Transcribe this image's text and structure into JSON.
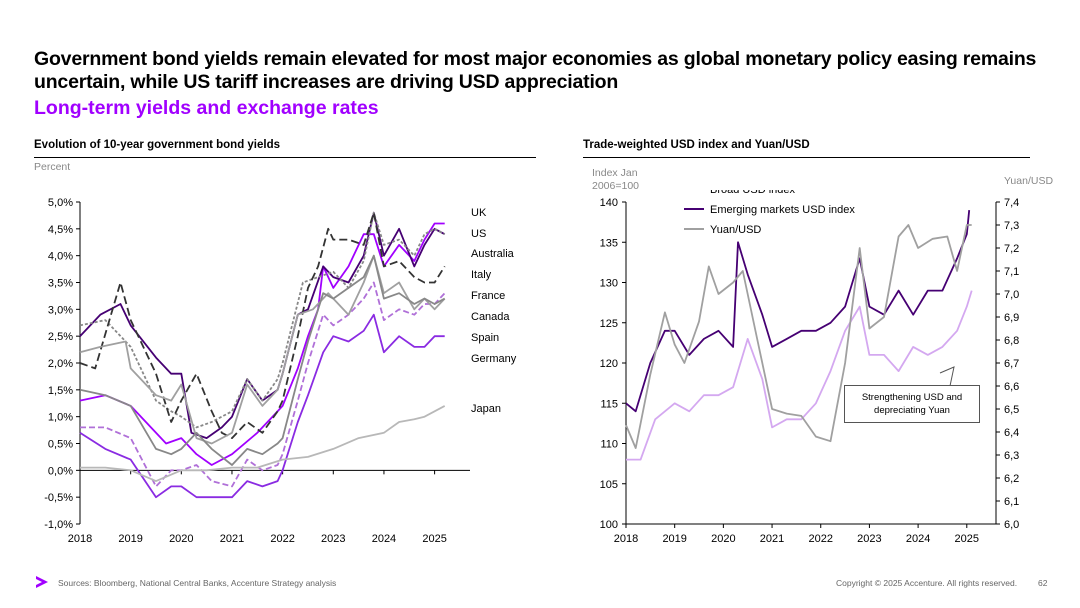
{
  "header": {
    "title": "Government bond yields remain elevated for most major economies as global monetary policy easing remains uncertain, while US tariff increases are driving USD appreciation",
    "subtitle": "Long-term yields and exchange rates"
  },
  "footer": {
    "sources": "Sources: Bloomberg, National Central Banks, Accenture Strategy analysis",
    "copyright": "Copyright © 2025 Accenture. All rights reserved.",
    "page": "62"
  },
  "colors": {
    "accent": "#a100ff",
    "dark_purple": "#460073",
    "light_purple": "#d4a8f0",
    "grey": "#a0a0a0"
  },
  "chart_data": [
    {
      "type": "line",
      "title": "Evolution of 10-year government bond yields",
      "ylabel": "Percent",
      "x_ticks": [
        "2018",
        "2019",
        "2020",
        "2021",
        "2022",
        "2023",
        "2024",
        "2025"
      ],
      "y_ticks": [
        "5,0%",
        "4,5%",
        "4,0%",
        "3,5%",
        "3,0%",
        "2,5%",
        "2,0%",
        "1,5%",
        "1,0%",
        "0,5%",
        "0,0%",
        "-0,5%",
        "-1,0%"
      ],
      "ylim": [
        -1.0,
        5.0
      ],
      "xlim": [
        2018.0,
        2025.6
      ],
      "legend": [
        "UK",
        "US",
        "Australia",
        "Italy",
        "France",
        "Canada",
        "Spain",
        "Germany",
        "Japan"
      ],
      "series": [
        {
          "name": "UK",
          "color": "#a100ff",
          "dash": "",
          "x": [
            2018,
            2018.5,
            2019,
            2019.5,
            2019.7,
            2020,
            2020.3,
            2020.6,
            2021,
            2021.5,
            2021.8,
            2022,
            2022.3,
            2022.5,
            2022.7,
            2022.8,
            2023,
            2023.3,
            2023.6,
            2023.8,
            2024,
            2024.3,
            2024.6,
            2024.8,
            2025,
            2025.2
          ],
          "values": [
            1.3,
            1.4,
            1.2,
            0.7,
            0.5,
            0.6,
            0.3,
            0.1,
            0.3,
            0.7,
            1.0,
            1.2,
            1.9,
            2.5,
            3.0,
            3.8,
            3.4,
            3.8,
            4.4,
            4.4,
            3.8,
            4.2,
            3.9,
            4.3,
            4.6,
            4.6
          ]
        },
        {
          "name": "US",
          "color": "#460073",
          "dash": "",
          "x": [
            2018,
            2018.4,
            2018.8,
            2019,
            2019.5,
            2019.8,
            2020,
            2020.2,
            2020.5,
            2020.8,
            2021,
            2021.3,
            2021.6,
            2021.9,
            2022,
            2022.3,
            2022.5,
            2022.8,
            2023,
            2023.3,
            2023.6,
            2023.8,
            2024,
            2024.3,
            2024.6,
            2024.8,
            2025,
            2025.2
          ],
          "values": [
            2.5,
            2.9,
            3.1,
            2.7,
            2.1,
            1.8,
            1.8,
            0.7,
            0.6,
            0.8,
            1.0,
            1.7,
            1.3,
            1.5,
            1.8,
            2.9,
            3.0,
            3.8,
            3.6,
            3.5,
            4.0,
            4.8,
            4.0,
            4.5,
            3.8,
            4.2,
            4.5,
            4.4
          ]
        },
        {
          "name": "Australia",
          "color": "#888888",
          "dash": "3,2",
          "x": [
            2018,
            2018.5,
            2019,
            2019.5,
            2019.8,
            2020,
            2020.3,
            2020.6,
            2021,
            2021.3,
            2021.6,
            2021.9,
            2022,
            2022.4,
            2022.7,
            2023,
            2023.3,
            2023.6,
            2023.8,
            2024,
            2024.3,
            2024.6,
            2024.8,
            2025,
            2025.2
          ],
          "values": [
            2.7,
            2.8,
            2.3,
            1.3,
            1.1,
            1.0,
            0.8,
            0.9,
            1.1,
            1.7,
            1.3,
            1.7,
            2.0,
            3.5,
            3.6,
            3.7,
            3.4,
            3.9,
            4.8,
            4.2,
            4.3,
            4.0,
            4.4,
            4.5,
            4.4
          ]
        },
        {
          "name": "Italy",
          "color": "#333333",
          "dash": "8,4",
          "x": [
            2018,
            2018.3,
            2018.8,
            2019,
            2019.5,
            2019.8,
            2020,
            2020.3,
            2020.6,
            2020.8,
            2021,
            2021.3,
            2021.6,
            2021.9,
            2022,
            2022.3,
            2022.5,
            2022.7,
            2022.9,
            2023,
            2023.3,
            2023.6,
            2023.8,
            2024,
            2024.3,
            2024.6,
            2024.8,
            2025,
            2025.2
          ],
          "values": [
            2.0,
            1.9,
            3.5,
            2.8,
            1.8,
            0.9,
            1.3,
            1.8,
            1.1,
            0.7,
            0.6,
            0.9,
            0.7,
            1.1,
            1.3,
            2.5,
            3.4,
            3.8,
            4.5,
            4.3,
            4.3,
            4.2,
            4.8,
            3.8,
            3.9,
            3.6,
            3.5,
            3.5,
            3.8
          ]
        },
        {
          "name": "France",
          "color": "#b070d8",
          "dash": "6,3",
          "x": [
            2018,
            2018.5,
            2019,
            2019.5,
            2019.8,
            2020,
            2020.3,
            2020.6,
            2021,
            2021.3,
            2021.6,
            2021.9,
            2022,
            2022.3,
            2022.5,
            2022.8,
            2023,
            2023.3,
            2023.6,
            2023.8,
            2024,
            2024.3,
            2024.6,
            2024.8,
            2025,
            2025.2
          ],
          "values": [
            0.8,
            0.8,
            0.6,
            -0.3,
            0.0,
            0.0,
            0.1,
            -0.2,
            -0.3,
            0.2,
            0.0,
            0.1,
            0.3,
            1.3,
            2.0,
            2.9,
            2.7,
            2.9,
            3.2,
            3.5,
            2.8,
            3.0,
            2.9,
            3.1,
            3.1,
            3.3
          ]
        },
        {
          "name": "Canada",
          "color": "#a0a0a0",
          "dash": "",
          "x": [
            2018,
            2018.4,
            2018.9,
            2019,
            2019.5,
            2019.8,
            2020,
            2020.3,
            2020.6,
            2021,
            2021.3,
            2021.6,
            2021.9,
            2022,
            2022.3,
            2022.6,
            2022.9,
            2023,
            2023.3,
            2023.6,
            2023.8,
            2024,
            2024.3,
            2024.6,
            2024.8,
            2025,
            2025.2
          ],
          "values": [
            2.2,
            2.3,
            2.4,
            1.9,
            1.4,
            1.3,
            1.6,
            0.6,
            0.5,
            0.7,
            1.6,
            1.2,
            1.5,
            1.8,
            2.9,
            3.0,
            3.3,
            3.2,
            2.9,
            3.5,
            4.0,
            3.3,
            3.5,
            3.0,
            3.2,
            3.0,
            3.2
          ]
        },
        {
          "name": "Spain",
          "color": "#888888",
          "dash": "",
          "x": [
            2018,
            2018.5,
            2019,
            2019.5,
            2019.8,
            2020,
            2020.3,
            2020.6,
            2021,
            2021.3,
            2021.6,
            2021.9,
            2022,
            2022.3,
            2022.5,
            2022.8,
            2023,
            2023.3,
            2023.6,
            2023.8,
            2024,
            2024.3,
            2024.6,
            2024.8,
            2025,
            2025.2
          ],
          "values": [
            1.5,
            1.4,
            1.2,
            0.4,
            0.3,
            0.4,
            0.7,
            0.4,
            0.1,
            0.4,
            0.3,
            0.5,
            0.6,
            1.7,
            2.4,
            3.3,
            3.2,
            3.4,
            3.6,
            4.0,
            3.2,
            3.3,
            3.1,
            3.2,
            3.1,
            3.2
          ]
        },
        {
          "name": "Germany",
          "color": "#8a2be2",
          "dash": "",
          "x": [
            2018,
            2018.5,
            2019,
            2019.5,
            2019.8,
            2020,
            2020.3,
            2020.6,
            2021,
            2021.3,
            2021.6,
            2021.9,
            2022,
            2022.3,
            2022.5,
            2022.8,
            2023,
            2023.3,
            2023.6,
            2023.8,
            2024,
            2024.3,
            2024.6,
            2024.8,
            2025,
            2025.2
          ],
          "values": [
            0.7,
            0.4,
            0.2,
            -0.5,
            -0.3,
            -0.3,
            -0.5,
            -0.5,
            -0.5,
            -0.2,
            -0.3,
            -0.2,
            0.0,
            0.9,
            1.4,
            2.2,
            2.5,
            2.4,
            2.6,
            2.9,
            2.2,
            2.5,
            2.3,
            2.3,
            2.5,
            2.5
          ]
        },
        {
          "name": "Japan",
          "color": "#b8b8b8",
          "dash": "",
          "x": [
            2018,
            2018.5,
            2019,
            2019.5,
            2020,
            2020.5,
            2021,
            2021.5,
            2022,
            2022.5,
            2023,
            2023.5,
            2024,
            2024.3,
            2024.6,
            2024.8,
            2025,
            2025.2
          ],
          "values": [
            0.05,
            0.05,
            0.0,
            -0.2,
            0.0,
            0.0,
            0.05,
            0.05,
            0.2,
            0.25,
            0.4,
            0.6,
            0.7,
            0.9,
            0.95,
            1.0,
            1.1,
            1.2
          ]
        }
      ]
    },
    {
      "type": "line",
      "title": "Trade-weighted USD index and Yuan/USD",
      "ylabel_left": "Index Jan 2006=100",
      "ylabel_right": "Yuan/USD",
      "x_ticks": [
        "2018",
        "2019",
        "2020",
        "2021",
        "2022",
        "2023",
        "2024",
        "2025"
      ],
      "y_ticks_left": [
        "140",
        "135",
        "130",
        "125",
        "120",
        "115",
        "110",
        "105",
        "100"
      ],
      "y_ticks_right": [
        "7,4",
        "7,3",
        "7,2",
        "7,1",
        "7,0",
        "6,9",
        "6,8",
        "6,7",
        "6,6",
        "6,5",
        "6,4",
        "6,3",
        "6,2",
        "6,1",
        "6,0"
      ],
      "ylim_left": [
        100,
        140
      ],
      "ylim_right": [
        6.0,
        7.4
      ],
      "xlim": [
        2018.0,
        2025.6
      ],
      "annotation": "Strengthening USD and depreciating Yuan",
      "series": [
        {
          "name": "Broad USD index",
          "axis": "left",
          "color": "#d4a8f0",
          "x": [
            2018,
            2018.3,
            2018.6,
            2019,
            2019.3,
            2019.6,
            2019.9,
            2020.2,
            2020.5,
            2020.8,
            2021,
            2021.3,
            2021.6,
            2021.9,
            2022.2,
            2022.5,
            2022.8,
            2023,
            2023.3,
            2023.6,
            2023.9,
            2024.2,
            2024.5,
            2024.8,
            2025,
            2025.1
          ],
          "values": [
            108,
            108,
            113,
            115,
            114,
            116,
            116,
            117,
            123,
            118,
            112,
            113,
            113,
            115,
            119,
            124,
            127,
            121,
            121,
            119,
            122,
            121,
            122,
            124,
            127,
            129
          ]
        },
        {
          "name": "Emerging markets USD index",
          "axis": "left",
          "color": "#460073",
          "x": [
            2018,
            2018.2,
            2018.5,
            2018.8,
            2019,
            2019.3,
            2019.6,
            2019.9,
            2020.2,
            2020.3,
            2020.5,
            2020.8,
            2021,
            2021.3,
            2021.6,
            2021.9,
            2022.2,
            2022.5,
            2022.8,
            2023,
            2023.3,
            2023.6,
            2023.9,
            2024.2,
            2024.5,
            2024.8,
            2025,
            2025.05
          ],
          "values": [
            115,
            114,
            120,
            124,
            124,
            121,
            123,
            124,
            122,
            135,
            131,
            126,
            122,
            123,
            124,
            124,
            125,
            127,
            133,
            127,
            126,
            129,
            126,
            129,
            129,
            133,
            136,
            139
          ]
        },
        {
          "name": "Yuan/USD",
          "axis": "right",
          "color": "#a0a0a0",
          "x": [
            2018,
            2018.2,
            2018.5,
            2018.8,
            2019,
            2019.2,
            2019.5,
            2019.7,
            2019.9,
            2020.2,
            2020.4,
            2020.7,
            2021,
            2021.3,
            2021.6,
            2021.9,
            2022.2,
            2022.5,
            2022.8,
            2023,
            2023.3,
            2023.6,
            2023.8,
            2024,
            2024.3,
            2024.6,
            2024.8,
            2025,
            2025.1
          ],
          "values": [
            6.43,
            6.33,
            6.65,
            6.92,
            6.78,
            6.7,
            6.88,
            7.12,
            7.0,
            7.05,
            7.1,
            6.8,
            6.5,
            6.48,
            6.47,
            6.38,
            6.36,
            6.7,
            7.2,
            6.85,
            6.9,
            7.25,
            7.3,
            7.2,
            7.24,
            7.25,
            7.1,
            7.3,
            7.3
          ]
        }
      ]
    }
  ]
}
